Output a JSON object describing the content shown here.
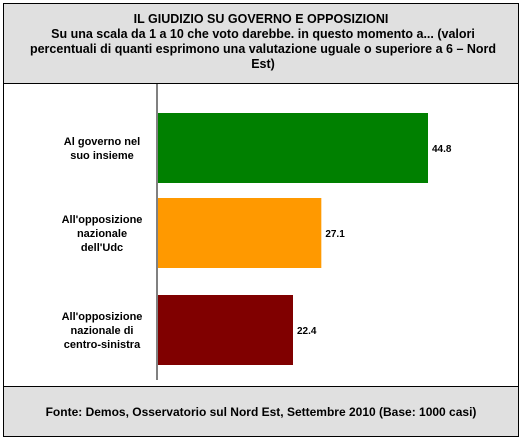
{
  "header": {
    "title": "IL GIUDIZIO SU GOVERNO E OPPOSIZIONI",
    "subtitle": "Su una scala da 1 a 10 che voto darebbe. in questo momento a... (valori percentuali di quanti esprimono una valutazione uguale o superiore a 6 – Nord Est)"
  },
  "footer": {
    "source": "Fonte: Demos, Osservatorio sul Nord Est, Settembre 2010 (Base: 1000 casi)"
  },
  "chart_data": {
    "type": "bar",
    "orientation": "horizontal",
    "categories": [
      [
        "Al governo nel",
        "suo insieme"
      ],
      [
        "All'opposizione",
        "nazionale",
        "dell'Udc"
      ],
      [
        "All'opposizione",
        "nazionale di",
        "centro-sinistra"
      ]
    ],
    "values": [
      44.8,
      27.1,
      22.4
    ],
    "value_labels": [
      "44.8",
      "27.1",
      "22.4"
    ],
    "colors": [
      "#008000",
      "#ff9900",
      "#800000"
    ],
    "xlim": [
      0,
      50
    ],
    "grid": false,
    "legend": "none"
  }
}
